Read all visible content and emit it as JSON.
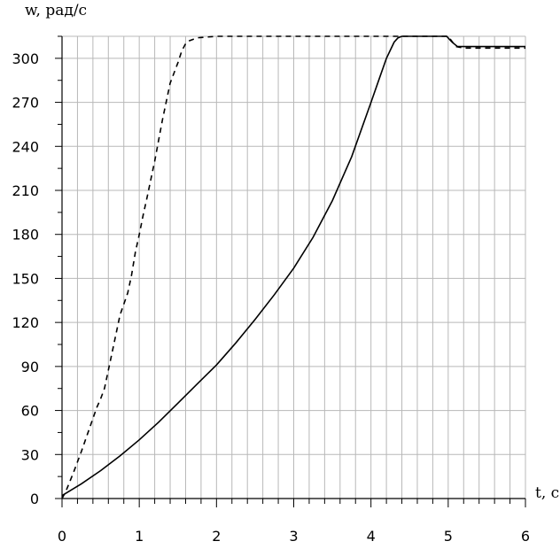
{
  "chart_data": {
    "type": "line",
    "xlabel": "t, c",
    "ylabel": "w, рад/с",
    "xlim": [
      0,
      6
    ],
    "ylim": [
      0,
      315
    ],
    "x_ticks": [
      0,
      1,
      2,
      3,
      4,
      5,
      6
    ],
    "y_ticks": [
      0,
      30,
      60,
      90,
      120,
      150,
      180,
      210,
      240,
      270,
      300
    ],
    "grid": true,
    "series": [
      {
        "style": "solid",
        "color": "#000000",
        "x": [
          0,
          0.25,
          0.5,
          0.75,
          1.0,
          1.25,
          1.5,
          1.75,
          2.0,
          2.25,
          2.5,
          2.75,
          3.0,
          3.25,
          3.5,
          3.75,
          4.0,
          4.1,
          4.2,
          4.3,
          4.35,
          4.4,
          4.5,
          4.7,
          4.98,
          5.05,
          5.12,
          5.3,
          5.6,
          6.0
        ],
        "y": [
          2,
          10,
          19,
          29,
          40,
          52,
          65,
          78,
          91,
          106,
          122,
          139,
          157,
          178,
          203,
          233,
          270,
          285,
          300,
          311,
          314,
          315,
          315,
          315,
          315,
          311,
          308,
          308,
          308,
          308
        ]
      },
      {
        "style": "dashed",
        "color": "#000000",
        "x": [
          0,
          0.05,
          0.15,
          0.25,
          0.35,
          0.45,
          0.5,
          0.55,
          0.65,
          0.75,
          0.85,
          0.9,
          0.95,
          1.0,
          1.05,
          1.1,
          1.2,
          1.3,
          1.4,
          1.5,
          1.55,
          1.6,
          1.65,
          1.75,
          2.0,
          3.0,
          4.0,
          4.5,
          5.0,
          5.1,
          5.2,
          5.5,
          6.0
        ],
        "y": [
          0,
          5,
          18,
          32,
          47,
          62,
          68,
          75,
          100,
          125,
          140,
          152,
          168,
          180,
          193,
          205,
          230,
          258,
          283,
          297,
          305,
          310,
          312,
          314,
          315,
          315,
          315,
          315,
          315,
          308,
          307,
          307,
          307
        ]
      }
    ]
  }
}
